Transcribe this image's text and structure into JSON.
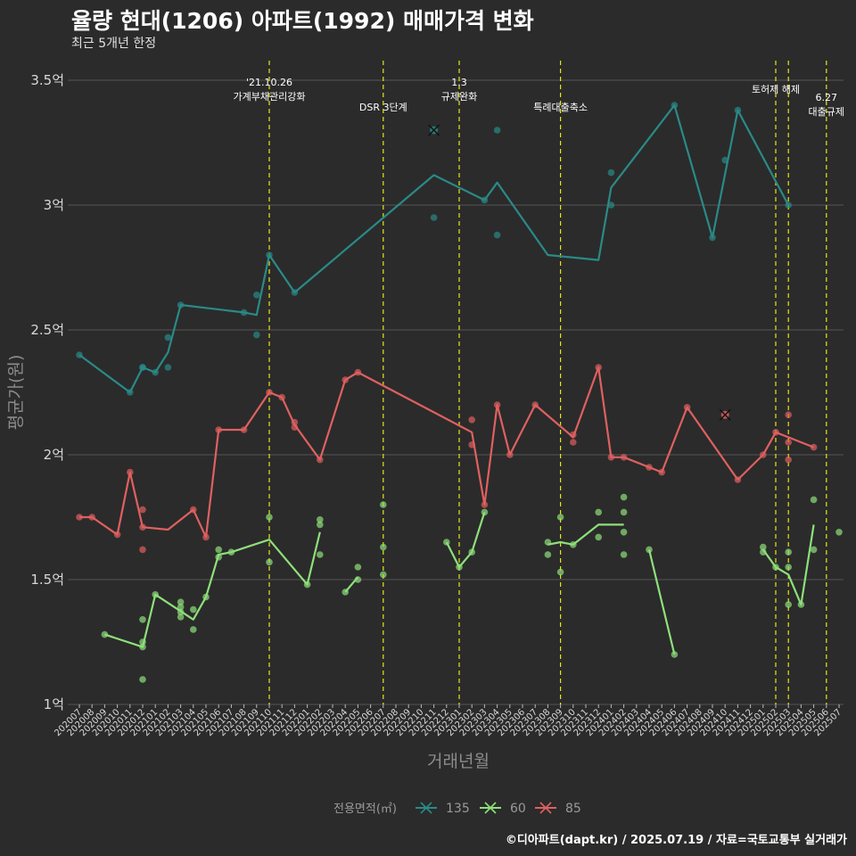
{
  "title": "율량 현대(1206) 아파트(1992) 매매가격 변화",
  "subtitle": "최근 5개년 한정",
  "caption": "©디아파트(dapt.kr) / 2025.07.19 / 자료=국토교통부 실거래가",
  "colors": {
    "background": "#2b2b2b",
    "grid": "#555555",
    "vline": "#e6e619",
    "s135": "#2a8a87",
    "s60": "#8ee07a",
    "s85": "#e06060"
  },
  "chart_data": {
    "type": "line",
    "title": "율량 현대(1206) 아파트(1992) 매매가격 변화",
    "subtitle": "최근 5개년 한정",
    "xlabel": "거래년월",
    "ylabel": "평균가(원)",
    "ylim": [
      1,
      3.5
    ],
    "yticks": [
      1,
      1.5,
      2,
      2.5,
      3,
      3.5
    ],
    "ytick_labels": [
      "1억",
      "1.5억",
      "2억",
      "2.5억",
      "3억",
      "3.5억"
    ],
    "x_months": [
      "202007",
      "202008",
      "202009",
      "202010",
      "202011",
      "202012",
      "202101",
      "202102",
      "202103",
      "202104",
      "202105",
      "202106",
      "202107",
      "202108",
      "202109",
      "202110",
      "202111",
      "202112",
      "202201",
      "202202",
      "202203",
      "202204",
      "202205",
      "202206",
      "202207",
      "202208",
      "202209",
      "202210",
      "202211",
      "202212",
      "202301",
      "202302",
      "202303",
      "202304",
      "202305",
      "202306",
      "202307",
      "202308",
      "202309",
      "202310",
      "202311",
      "202312",
      "202401",
      "202402",
      "202403",
      "202404",
      "202405",
      "202406",
      "202407",
      "202408",
      "202409",
      "202410",
      "202411",
      "202412",
      "202501",
      "202502",
      "202503",
      "202504",
      "202505",
      "202506",
      "202507"
    ],
    "grid": true,
    "legend": {
      "position": "bottom",
      "title": "전용면적(㎡)",
      "entries": [
        "135",
        "60",
        "85"
      ]
    },
    "annotations": [
      {
        "x": "202110",
        "lines": [
          "'21.10.26",
          "가계부채관리강화"
        ]
      },
      {
        "x": "202207",
        "lines": [
          "DSR 3단계"
        ]
      },
      {
        "x": "202301",
        "lines": [
          "1.3",
          "규제완화"
        ]
      },
      {
        "x": "202309",
        "lines": [
          "특례대출축소"
        ]
      },
      {
        "x": "202502",
        "lines": [
          "토허제 해제"
        ]
      },
      {
        "x": "202503",
        "lines": []
      },
      {
        "x": "202506",
        "lines": [
          "6.27",
          "대출규제"
        ]
      }
    ],
    "series": [
      {
        "name": "135",
        "line": [
          [
            "202007",
            2.4
          ],
          [
            "202011",
            2.25
          ],
          [
            "202012",
            2.35
          ],
          [
            "202101",
            2.33
          ],
          [
            "202102",
            2.41
          ],
          [
            "202103",
            2.6
          ],
          [
            "202108",
            2.57
          ],
          [
            "202109",
            2.56
          ],
          [
            "202110",
            2.8
          ],
          [
            "202112",
            2.65
          ],
          [
            "202211",
            3.12
          ],
          [
            "202303",
            3.02
          ],
          [
            "202304",
            3.09
          ],
          [
            "202308",
            2.8
          ],
          [
            "202312",
            2.78
          ],
          [
            "202401",
            3.07
          ],
          [
            "202406",
            3.4
          ],
          [
            "202409",
            2.87
          ],
          [
            "202411",
            3.38
          ],
          [
            "202503",
            3.0
          ]
        ],
        "points": [
          [
            "202007",
            2.4
          ],
          [
            "202011",
            2.25
          ],
          [
            "202012",
            2.35
          ],
          [
            "202012",
            2.35
          ],
          [
            "202101",
            2.33
          ],
          [
            "202102",
            2.47
          ],
          [
            "202102",
            2.35
          ],
          [
            "202103",
            2.6
          ],
          [
            "202108",
            2.57
          ],
          [
            "202109",
            2.64
          ],
          [
            "202109",
            2.48
          ],
          [
            "202110",
            2.8
          ],
          [
            "202112",
            2.65
          ],
          [
            "202211",
            2.95
          ],
          [
            "202303",
            3.02
          ],
          [
            "202304",
            3.3
          ],
          [
            "202304",
            2.88
          ],
          [
            "202401",
            3.13
          ],
          [
            "202401",
            3.0
          ],
          [
            "202406",
            3.4
          ],
          [
            "202409",
            2.87
          ],
          [
            "202410",
            3.18
          ],
          [
            "202411",
            3.38
          ],
          [
            "202503",
            3.0
          ]
        ],
        "cancelled": [
          [
            "202211",
            3.3
          ]
        ]
      },
      {
        "name": "60",
        "line_segments": [
          [
            [
              "202009",
              1.28
            ],
            [
              "202012",
              1.23
            ],
            [
              "202101",
              1.44
            ],
            [
              "202104",
              1.34
            ],
            [
              "202105",
              1.43
            ],
            [
              "202106",
              1.6
            ],
            [
              "202107",
              1.61
            ],
            [
              "202110",
              1.66
            ],
            [
              "202201",
              1.48
            ],
            [
              "202202",
              1.69
            ]
          ],
          [
            [
              "202204",
              1.45
            ],
            [
              "202205",
              1.51
            ]
          ],
          [
            [
              "202212",
              1.65
            ],
            [
              "202301",
              1.55
            ],
            [
              "202302",
              1.61
            ],
            [
              "202303",
              1.77
            ]
          ],
          [
            [
              "202308",
              1.64
            ],
            [
              "202309",
              1.65
            ],
            [
              "202310",
              1.64
            ],
            [
              "202312",
              1.72
            ],
            [
              "202402",
              1.72
            ]
          ],
          [
            [
              "202404",
              1.62
            ],
            [
              "202406",
              1.2
            ]
          ],
          [
            [
              "202501",
              1.62
            ],
            [
              "202502",
              1.55
            ],
            [
              "202503",
              1.52
            ],
            [
              "202504",
              1.4
            ],
            [
              "202505",
              1.72
            ]
          ]
        ],
        "points": [
          [
            "202009",
            1.28
          ],
          [
            "202012",
            1.25
          ],
          [
            "202012",
            1.23
          ],
          [
            "202012",
            1.34
          ],
          [
            "202012",
            1.1
          ],
          [
            "202101",
            1.44
          ],
          [
            "202103",
            1.39
          ],
          [
            "202103",
            1.41
          ],
          [
            "202103",
            1.35
          ],
          [
            "202103",
            1.37
          ],
          [
            "202104",
            1.38
          ],
          [
            "202104",
            1.3
          ],
          [
            "202105",
            1.43
          ],
          [
            "202106",
            1.62
          ],
          [
            "202106",
            1.59
          ],
          [
            "202107",
            1.61
          ],
          [
            "202110",
            1.75
          ],
          [
            "202110",
            1.57
          ],
          [
            "202201",
            1.48
          ],
          [
            "202202",
            1.74
          ],
          [
            "202202",
            1.72
          ],
          [
            "202202",
            1.6
          ],
          [
            "202204",
            1.45
          ],
          [
            "202205",
            1.55
          ],
          [
            "202205",
            1.5
          ],
          [
            "202207",
            1.8
          ],
          [
            "202207",
            1.63
          ],
          [
            "202207",
            1.52
          ],
          [
            "202212",
            1.65
          ],
          [
            "202301",
            1.55
          ],
          [
            "202302",
            1.61
          ],
          [
            "202303",
            1.77
          ],
          [
            "202308",
            1.65
          ],
          [
            "202308",
            1.6
          ],
          [
            "202309",
            1.75
          ],
          [
            "202309",
            1.53
          ],
          [
            "202310",
            1.64
          ],
          [
            "202312",
            1.77
          ],
          [
            "202312",
            1.67
          ],
          [
            "202402",
            1.83
          ],
          [
            "202402",
            1.77
          ],
          [
            "202402",
            1.69
          ],
          [
            "202402",
            1.6
          ],
          [
            "202404",
            1.62
          ],
          [
            "202406",
            1.2
          ],
          [
            "202501",
            1.63
          ],
          [
            "202501",
            1.61
          ],
          [
            "202502",
            1.55
          ],
          [
            "202503",
            1.61
          ],
          [
            "202503",
            1.55
          ],
          [
            "202503",
            1.4
          ],
          [
            "202504",
            1.4
          ],
          [
            "202505",
            1.82
          ],
          [
            "202505",
            1.62
          ],
          [
            "202507",
            1.69
          ]
        ]
      },
      {
        "name": "85",
        "line": [
          [
            "202007",
            1.75
          ],
          [
            "202008",
            1.75
          ],
          [
            "202010",
            1.68
          ],
          [
            "202011",
            1.93
          ],
          [
            "202012",
            1.71
          ],
          [
            "202102",
            1.7
          ],
          [
            "202104",
            1.78
          ],
          [
            "202105",
            1.67
          ],
          [
            "202106",
            2.1
          ],
          [
            "202108",
            2.1
          ],
          [
            "202110",
            2.25
          ],
          [
            "202111",
            2.23
          ],
          [
            "202112",
            2.12
          ],
          [
            "202202",
            1.98
          ],
          [
            "202204",
            2.3
          ],
          [
            "202205",
            2.33
          ],
          [
            "202302",
            2.09
          ],
          [
            "202303",
            1.8
          ],
          [
            "202304",
            2.2
          ],
          [
            "202305",
            2.0
          ],
          [
            "202307",
            2.2
          ],
          [
            "202310",
            2.07
          ],
          [
            "202312",
            2.35
          ],
          [
            "202401",
            1.99
          ],
          [
            "202402",
            1.99
          ],
          [
            "202404",
            1.95
          ],
          [
            "202405",
            1.93
          ],
          [
            "202407",
            2.19
          ],
          [
            "202411",
            1.9
          ],
          [
            "202501",
            2.0
          ],
          [
            "202502",
            2.09
          ],
          [
            "202503",
            2.07
          ],
          [
            "202505",
            2.03
          ]
        ],
        "points": [
          [
            "202007",
            1.75
          ],
          [
            "202008",
            1.75
          ],
          [
            "202010",
            1.68
          ],
          [
            "202011",
            1.93
          ],
          [
            "202012",
            1.71
          ],
          [
            "202012",
            1.78
          ],
          [
            "202012",
            1.62
          ],
          [
            "202104",
            1.78
          ],
          [
            "202105",
            1.67
          ],
          [
            "202106",
            2.1
          ],
          [
            "202108",
            2.1
          ],
          [
            "202110",
            2.25
          ],
          [
            "202111",
            2.23
          ],
          [
            "202112",
            2.13
          ],
          [
            "202112",
            2.11
          ],
          [
            "202202",
            1.98
          ],
          [
            "202204",
            2.3
          ],
          [
            "202205",
            2.33
          ],
          [
            "202302",
            2.14
          ],
          [
            "202302",
            2.04
          ],
          [
            "202303",
            1.8
          ],
          [
            "202304",
            2.2
          ],
          [
            "202305",
            2.0
          ],
          [
            "202307",
            2.2
          ],
          [
            "202310",
            2.08
          ],
          [
            "202310",
            2.05
          ],
          [
            "202312",
            2.35
          ],
          [
            "202401",
            1.99
          ],
          [
            "202402",
            1.99
          ],
          [
            "202404",
            1.95
          ],
          [
            "202405",
            1.93
          ],
          [
            "202407",
            2.19
          ],
          [
            "202411",
            1.9
          ],
          [
            "202501",
            2.0
          ],
          [
            "202502",
            2.09
          ],
          [
            "202503",
            2.16
          ],
          [
            "202503",
            2.05
          ],
          [
            "202503",
            1.98
          ],
          [
            "202505",
            2.03
          ]
        ],
        "cancelled": [
          [
            "202410",
            2.16
          ]
        ]
      }
    ]
  }
}
